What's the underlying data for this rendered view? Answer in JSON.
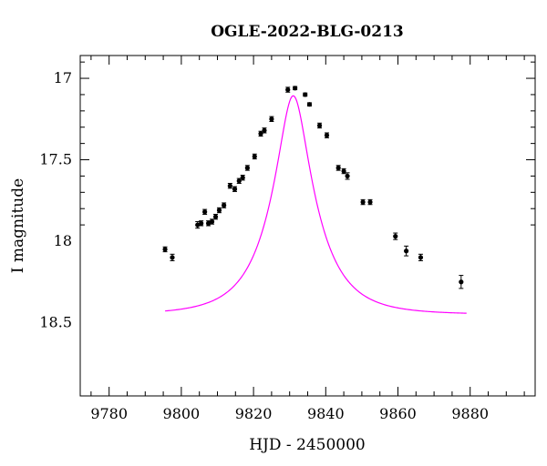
{
  "chart_data": {
    "type": "scatter",
    "title": "OGLE-2022-BLG-0213",
    "xlabel": "HJD - 2450000",
    "ylabel": "I magnitude",
    "xlim": [
      9772,
      9898
    ],
    "ylim": [
      18.95,
      16.86
    ],
    "y_inverted": true,
    "grid": false,
    "x_ticks": [
      9780,
      9800,
      9820,
      9840,
      9860,
      9880
    ],
    "x_tick_labels": [
      "9780",
      "9800",
      "9820",
      "9840",
      "9860",
      "9880"
    ],
    "y_ticks": [
      17,
      17.5,
      18,
      18.5
    ],
    "y_tick_labels": [
      "17",
      "17.5",
      "18",
      "18.5"
    ],
    "colors": {
      "points": "#000000",
      "model": "#ff00ff"
    },
    "series": [
      {
        "type": "scatter",
        "x": [
          9795.5,
          9797.5,
          9804.5,
          9805.5,
          9806.5,
          9807.5,
          9808.5,
          9809.5,
          9810.5,
          9811.8,
          9813.5,
          9814.8,
          9816,
          9817,
          9818.3,
          9820.3,
          9822,
          9823,
          9825,
          9829.5,
          9831.5,
          9834.3,
          9835.5,
          9838.3,
          9840.3,
          9843.5,
          9845,
          9846,
          9850.3,
          9852.3,
          9859.3,
          9862.3,
          9866.3,
          9877.5
        ],
        "y": [
          18.05,
          18.1,
          17.9,
          17.89,
          17.82,
          17.89,
          17.88,
          17.85,
          17.81,
          17.78,
          17.66,
          17.68,
          17.63,
          17.61,
          17.55,
          17.48,
          17.34,
          17.32,
          17.25,
          17.07,
          17.06,
          17.1,
          17.16,
          17.29,
          17.35,
          17.55,
          17.57,
          17.6,
          17.76,
          17.76,
          17.97,
          18.06,
          18.1,
          18.25
        ],
        "err": [
          0.015,
          0.02,
          0.02,
          0.015,
          0.015,
          0.015,
          0.015,
          0.015,
          0.015,
          0.015,
          0.015,
          0.015,
          0.015,
          0.015,
          0.015,
          0.015,
          0.015,
          0.015,
          0.015,
          0.015,
          0.01,
          0.01,
          0.01,
          0.015,
          0.015,
          0.015,
          0.015,
          0.02,
          0.015,
          0.015,
          0.02,
          0.03,
          0.02,
          0.04
        ]
      },
      {
        "type": "line",
        "model": {
          "t0": 9831,
          "u0": 0.3,
          "tE": 12.5,
          "I_base": 18.45
        },
        "x_range": [
          9795.5,
          9879
        ]
      }
    ]
  }
}
